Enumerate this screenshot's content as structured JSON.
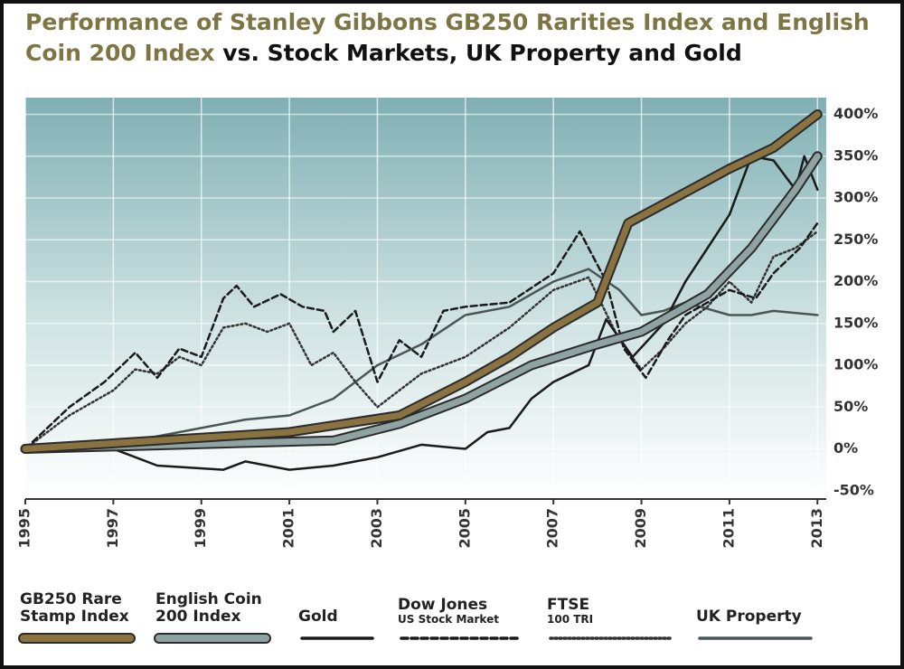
{
  "chart_data": {
    "type": "line",
    "title_highlight": "Performance of Stanley Gibbons GB250 Rarities Index and English Coin 200 Index",
    "title_rest": "vs. Stock Markets, UK Property and Gold",
    "xlim": [
      1995,
      2013.2
    ],
    "xticks": [
      1995,
      1997,
      1999,
      2001,
      2003,
      2005,
      2007,
      2009,
      2011,
      2013
    ],
    "ylim": [
      -60,
      420
    ],
    "yticks": [
      {
        "value": -50,
        "label": "-50%"
      },
      {
        "value": 0,
        "label": "0%"
      },
      {
        "value": 50,
        "label": "50%"
      },
      {
        "value": 100,
        "label": "100%"
      },
      {
        "value": 150,
        "label": "150%"
      },
      {
        "value": 200,
        "label": "200%"
      },
      {
        "value": 250,
        "label": "250%"
      },
      {
        "value": 300,
        "label": "300%"
      },
      {
        "value": 350,
        "label": "350%"
      },
      {
        "value": 400,
        "label": "400%"
      }
    ],
    "grid": true,
    "series": [
      {
        "name": "GB250 Rare Stamp Index",
        "color": "#8a7340",
        "style": "band",
        "x": [
          1995,
          1998,
          2001,
          2003.5,
          2005,
          2006,
          2007,
          2008,
          2008.7,
          2011,
          2012,
          2013
        ],
        "values": [
          0,
          10,
          20,
          40,
          80,
          110,
          145,
          175,
          270,
          335,
          360,
          400
        ]
      },
      {
        "name": "English Coin 200 Index",
        "color": "#8fa3a3",
        "style": "band",
        "x": [
          1995,
          2002,
          2003.5,
          2005,
          2006.5,
          2008,
          2009,
          2010.5,
          2011.5,
          2012.5,
          2013
        ],
        "values": [
          0,
          10,
          30,
          60,
          100,
          125,
          140,
          185,
          240,
          310,
          350
        ]
      },
      {
        "name": "Gold",
        "color": "#1a1a1a",
        "style": "solid",
        "x": [
          1995,
          1997,
          1998,
          1999.5,
          2000,
          2001,
          2002,
          2003,
          2004,
          2005,
          2005.5,
          2006,
          2006.5,
          2007,
          2007.8,
          2008.2,
          2008.8,
          2009.5,
          2010,
          2010.5,
          2011,
          2011.5,
          2012,
          2012.5,
          2012.7,
          2013
        ],
        "values": [
          0,
          0,
          -20,
          -25,
          -15,
          -25,
          -20,
          -10,
          5,
          0,
          20,
          25,
          60,
          80,
          100,
          155,
          110,
          150,
          200,
          240,
          280,
          350,
          345,
          310,
          350,
          310
        ]
      },
      {
        "name": "Dow Jones",
        "sub": "US Stock Market",
        "color": "#1a1a1a",
        "style": "dashed",
        "x": [
          1995,
          1996,
          1996.8,
          1997.5,
          1998,
          1998.5,
          1999,
          1999.5,
          1999.8,
          2000.2,
          2000.8,
          2001.3,
          2001.8,
          2002,
          2002.5,
          2003,
          2003.5,
          2004,
          2004.5,
          2005,
          2006,
          2007,
          2007.6,
          2008.2,
          2008.6,
          2009.1,
          2009.6,
          2010,
          2010.5,
          2011,
          2011.6,
          2012,
          2012.6,
          2013
        ],
        "values": [
          0,
          50,
          80,
          115,
          85,
          120,
          110,
          180,
          195,
          170,
          185,
          170,
          165,
          140,
          165,
          80,
          130,
          110,
          165,
          170,
          175,
          210,
          260,
          200,
          120,
          85,
          130,
          160,
          175,
          190,
          180,
          210,
          240,
          270
        ]
      },
      {
        "name": "FTSE",
        "sub": "100 TRI",
        "color": "#333333",
        "style": "dotted",
        "x": [
          1995,
          1996,
          1997,
          1997.5,
          1998,
          1998.5,
          1999,
          1999.5,
          2000,
          2000.5,
          2001,
          2001.5,
          2002,
          2002.5,
          2003,
          2003.5,
          2004,
          2005,
          2006,
          2007,
          2007.8,
          2008.5,
          2009,
          2009.5,
          2010,
          2010.5,
          2011,
          2011.5,
          2012,
          2012.5,
          2013
        ],
        "values": [
          0,
          40,
          70,
          95,
          90,
          110,
          100,
          145,
          150,
          140,
          150,
          100,
          115,
          80,
          50,
          70,
          90,
          110,
          145,
          190,
          205,
          130,
          95,
          120,
          150,
          170,
          200,
          175,
          230,
          240,
          260
        ]
      },
      {
        "name": "UK Property",
        "color": "#4a5656",
        "style": "solid",
        "x": [
          1995,
          1997,
          1998,
          1999,
          2000,
          2001,
          2002,
          2003,
          2004,
          2005,
          2006,
          2007,
          2007.8,
          2008.5,
          2009,
          2009.5,
          2010,
          2011,
          2011.5,
          2012,
          2013
        ],
        "values": [
          0,
          5,
          15,
          25,
          35,
          40,
          60,
          100,
          125,
          160,
          170,
          200,
          215,
          190,
          160,
          165,
          175,
          160,
          160,
          165,
          160
        ]
      }
    ]
  }
}
